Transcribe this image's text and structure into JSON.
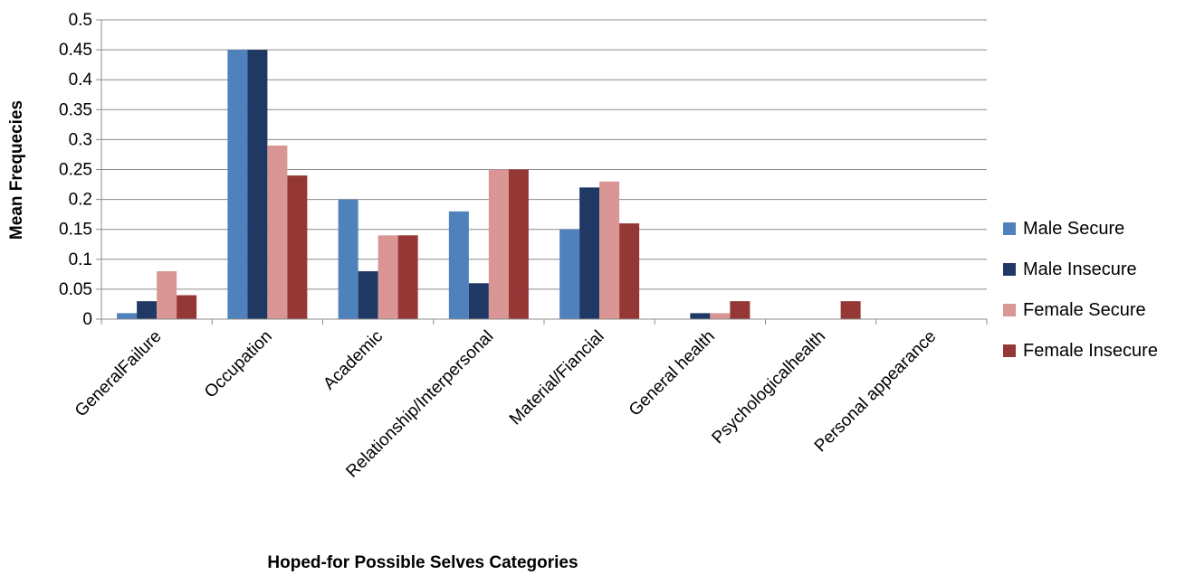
{
  "chart_data": {
    "type": "bar",
    "title": "",
    "xlabel": "Hoped-for Possible Selves Categories",
    "ylabel": "Mean Frequecies",
    "ylim": [
      0,
      0.5
    ],
    "yticks": [
      "0",
      "0.05",
      "0.1",
      "0.15",
      "0.2",
      "0.25",
      "0.3",
      "0.35",
      "0.4",
      "0.45",
      "0.5"
    ],
    "categories": [
      "GeneralFailure",
      "Occupation",
      "Academic",
      "Relationship/Interpersonal",
      "Material/Fiancial",
      "General health",
      "Psychologicalhealth",
      "Personal appearance"
    ],
    "series": [
      {
        "name": "Male Secure",
        "color": "#4f81bd",
        "values": [
          0.01,
          0.45,
          0.2,
          0.18,
          0.15,
          0,
          0,
          0
        ]
      },
      {
        "name": "Male Insecure",
        "color": "#1f3864",
        "values": [
          0.03,
          0.45,
          0.08,
          0.06,
          0.22,
          0.01,
          0,
          0
        ]
      },
      {
        "name": "Female Secure",
        "color": "#d99694",
        "values": [
          0.08,
          0.29,
          0.14,
          0.25,
          0.23,
          0.01,
          0,
          0
        ]
      },
      {
        "name": "Female Insecure",
        "color": "#953735",
        "values": [
          0.04,
          0.24,
          0.14,
          0.25,
          0.16,
          0.03,
          0.03,
          0
        ]
      }
    ],
    "grid": true,
    "legend_position": "right"
  }
}
